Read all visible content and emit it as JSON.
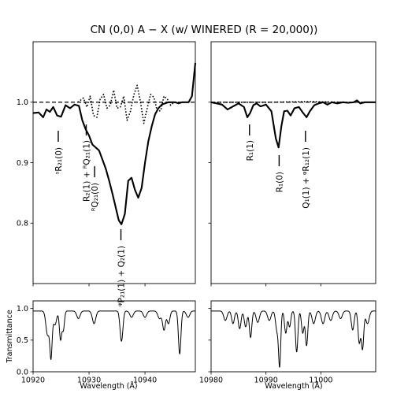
{
  "title": "CN (0,0) A − X (w/ WINERED (R = 20,000))",
  "chart_data": [
    {
      "type": "line",
      "panel": "top-left",
      "ylim": [
        0.7,
        1.1
      ],
      "xlim": [
        10920,
        10949
      ],
      "yticks": [
        0.8,
        0.9,
        1.0
      ],
      "ytick_labels": [
        "0.8",
        "0.9",
        "1.0"
      ],
      "continuum": 1.0,
      "series": [
        {
          "style": "solid",
          "x": [
            10920,
            10921,
            10921.8,
            10922.4,
            10923,
            10923.6,
            10924.3,
            10925,
            10925.8,
            10926.6,
            10927.4,
            10928.2,
            10928.8,
            10929.4,
            10930,
            10930.6,
            10931.2,
            10931.8,
            10932.4,
            10933,
            10933.6,
            10934.2,
            10934.8,
            10935.3,
            10935.8,
            10936.4,
            10937,
            10937.6,
            10938.2,
            10938.8,
            10939.4,
            10940,
            10940.6,
            10941.2,
            10941.8,
            10942.4,
            10943,
            10943.6,
            10944.2,
            10944.8,
            10945.4,
            10946,
            10946.6,
            10947.2,
            10947.8,
            10948.4,
            10949
          ],
          "y": [
            0.982,
            0.983,
            0.975,
            0.988,
            0.984,
            0.992,
            0.978,
            0.976,
            0.995,
            0.99,
            0.996,
            0.994,
            0.97,
            0.955,
            0.945,
            0.93,
            0.925,
            0.92,
            0.905,
            0.89,
            0.87,
            0.848,
            0.825,
            0.805,
            0.798,
            0.815,
            0.87,
            0.875,
            0.855,
            0.842,
            0.858,
            0.9,
            0.935,
            0.96,
            0.98,
            0.99,
            0.996,
            0.998,
            1.0,
            1.0,
            1.0,
            0.998,
            1.0,
            1.0,
            1.0,
            1.01,
            1.065
          ]
        },
        {
          "style": "dotted",
          "x": [
            10928,
            10929,
            10929.6,
            10930.2,
            10930.8,
            10931.4,
            10932,
            10932.6,
            10933.2,
            10933.8,
            10934.4,
            10935,
            10935.6,
            10936.2,
            10936.8,
            10937.4,
            10938,
            10938.6,
            10939.2,
            10939.8,
            10940.4,
            10941,
            10941.6,
            10942.2,
            10942.8,
            10943.4,
            10944,
            10944.6,
            10945.2,
            10945.8
          ],
          "y": [
            1.0,
            1.007,
            0.992,
            1.01,
            0.978,
            0.975,
            1.005,
            1.013,
            0.99,
            0.995,
            1.02,
            0.99,
            0.992,
            1.01,
            0.97,
            0.985,
            1.012,
            1.028,
            1.0,
            0.965,
            0.99,
            1.013,
            1.008,
            0.985,
            0.986,
            1.01,
            1.005,
            0.995,
            1.0,
            1.0
          ]
        }
      ],
      "annotations": [
        {
          "label": "ˢR₂₁(0)",
          "x": 10924.5
        },
        {
          "label": "R₂(1) + ᴿQ₂₁(1)",
          "x": 10929.5
        },
        {
          "label": "ᴿQ₂₁(0)",
          "x": 10931
        },
        {
          "label": "ᵠP₂₁(1) + Q₂(1)",
          "x": 10935.7
        }
      ]
    },
    {
      "type": "line",
      "panel": "top-right",
      "ylim": [
        0.7,
        1.1
      ],
      "xlim": [
        10980,
        11010
      ],
      "continuum": 1.0,
      "series": [
        {
          "style": "solid",
          "x": [
            10980,
            10981,
            10982,
            10983,
            10984,
            10985,
            10986,
            10986.6,
            10987.1,
            10987.7,
            10988.3,
            10989,
            10990,
            10991,
            10991.8,
            10992.3,
            10992.8,
            10993.3,
            10993.9,
            10994.5,
            10995.2,
            10996,
            10996.8,
            10997.4,
            10998,
            10998.8,
            10999.6,
            11000.4,
            11001.2,
            11002,
            11003,
            11004,
            11005,
            11006,
            11006.6,
            11007.2,
            11008,
            11009,
            11010
          ],
          "y": [
            1.0,
            0.998,
            0.996,
            0.988,
            0.993,
            0.998,
            0.992,
            0.975,
            0.982,
            0.995,
            0.998,
            0.993,
            0.996,
            0.985,
            0.94,
            0.925,
            0.96,
            0.985,
            0.986,
            0.978,
            0.99,
            0.992,
            0.982,
            0.975,
            0.985,
            0.995,
            0.998,
            1.0,
            0.996,
            1.0,
            0.998,
            1.0,
            0.999,
            1.0,
            1.003,
            0.998,
            1.0,
            1.0,
            1.0
          ]
        },
        {
          "style": "dotted",
          "x": [
            10980,
            10990,
            10998,
            11005,
            11010
          ],
          "y": [
            1.0,
            1.0,
            1.001,
            1.0,
            1.0
          ]
        }
      ],
      "annotations": [
        {
          "label": "R₁(1)",
          "x": 10987
        },
        {
          "label": "R₁(0)",
          "x": 10992.4
        },
        {
          "label": "Q₁(1) + ᵠR₁₂(1)",
          "x": 10997.2
        }
      ]
    },
    {
      "type": "line",
      "panel": "bottom-left",
      "ylabel": "Transmittance",
      "xlabel": "Wavelength (Å)",
      "xlim": [
        10920,
        10949
      ],
      "ylim": [
        0,
        1.12
      ],
      "xticks": [
        10920,
        10930,
        10940
      ],
      "xtick_labels": [
        "10920",
        "10930",
        "10940"
      ],
      "yticks": [
        0.0,
        0.5,
        1.0
      ],
      "ytick_labels": [
        "0.0",
        "0.5",
        "1.0"
      ],
      "baseline": 0.96,
      "absorption_lines": [
        {
          "x": 10922.6,
          "depth": 0.38,
          "width": 0.3
        },
        {
          "x": 10923.2,
          "depth": 0.7,
          "width": 0.2
        },
        {
          "x": 10923.9,
          "depth": 0.22,
          "width": 0.3
        },
        {
          "x": 10924.9,
          "depth": 0.45,
          "width": 0.2
        },
        {
          "x": 10925.4,
          "depth": 0.3,
          "width": 0.2
        },
        {
          "x": 10928.1,
          "depth": 0.12,
          "width": 0.3
        },
        {
          "x": 10930.9,
          "depth": 0.2,
          "width": 0.3
        },
        {
          "x": 10935.8,
          "depth": 0.48,
          "width": 0.25
        },
        {
          "x": 10937.6,
          "depth": 0.1,
          "width": 0.3
        },
        {
          "x": 10940,
          "depth": 0.1,
          "width": 0.3
        },
        {
          "x": 10942.6,
          "depth": 0.12,
          "width": 0.3
        },
        {
          "x": 10943.4,
          "depth": 0.3,
          "width": 0.25
        },
        {
          "x": 10944.2,
          "depth": 0.2,
          "width": 0.25
        },
        {
          "x": 10946.2,
          "depth": 0.68,
          "width": 0.22
        },
        {
          "x": 10947.7,
          "depth": 0.1,
          "width": 0.3
        }
      ]
    },
    {
      "type": "line",
      "panel": "bottom-right",
      "xlabel": "Wavelength (Å)",
      "xlim": [
        10980,
        11010
      ],
      "ylim": [
        0,
        1.12
      ],
      "xticks": [
        10980,
        10990,
        11000
      ],
      "xtick_labels": [
        "10980",
        "10990",
        "11000"
      ],
      "baseline": 0.96,
      "absorption_lines": [
        {
          "x": 10982.6,
          "depth": 0.15,
          "width": 0.3
        },
        {
          "x": 10984,
          "depth": 0.2,
          "width": 0.25
        },
        {
          "x": 10985.2,
          "depth": 0.28,
          "width": 0.25
        },
        {
          "x": 10986.3,
          "depth": 0.25,
          "width": 0.25
        },
        {
          "x": 10987.2,
          "depth": 0.42,
          "width": 0.22
        },
        {
          "x": 10988.5,
          "depth": 0.18,
          "width": 0.3
        },
        {
          "x": 10990.6,
          "depth": 0.15,
          "width": 0.3
        },
        {
          "x": 10992,
          "depth": 0.3,
          "width": 0.25
        },
        {
          "x": 10992.5,
          "depth": 0.85,
          "width": 0.2
        },
        {
          "x": 10993.6,
          "depth": 0.35,
          "width": 0.22
        },
        {
          "x": 10994.3,
          "depth": 0.25,
          "width": 0.22
        },
        {
          "x": 10995.6,
          "depth": 0.65,
          "width": 0.22
        },
        {
          "x": 10996.7,
          "depth": 0.35,
          "width": 0.22
        },
        {
          "x": 10997.4,
          "depth": 0.55,
          "width": 0.22
        },
        {
          "x": 10998.7,
          "depth": 0.2,
          "width": 0.3
        },
        {
          "x": 11000.4,
          "depth": 0.2,
          "width": 0.3
        },
        {
          "x": 11001.8,
          "depth": 0.15,
          "width": 0.3
        },
        {
          "x": 11003.6,
          "depth": 0.12,
          "width": 0.3
        },
        {
          "x": 11005.8,
          "depth": 0.3,
          "width": 0.25
        },
        {
          "x": 11007,
          "depth": 0.5,
          "width": 0.22
        },
        {
          "x": 11007.6,
          "depth": 0.6,
          "width": 0.22
        },
        {
          "x": 11008.5,
          "depth": 0.2,
          "width": 0.3
        }
      ]
    }
  ]
}
